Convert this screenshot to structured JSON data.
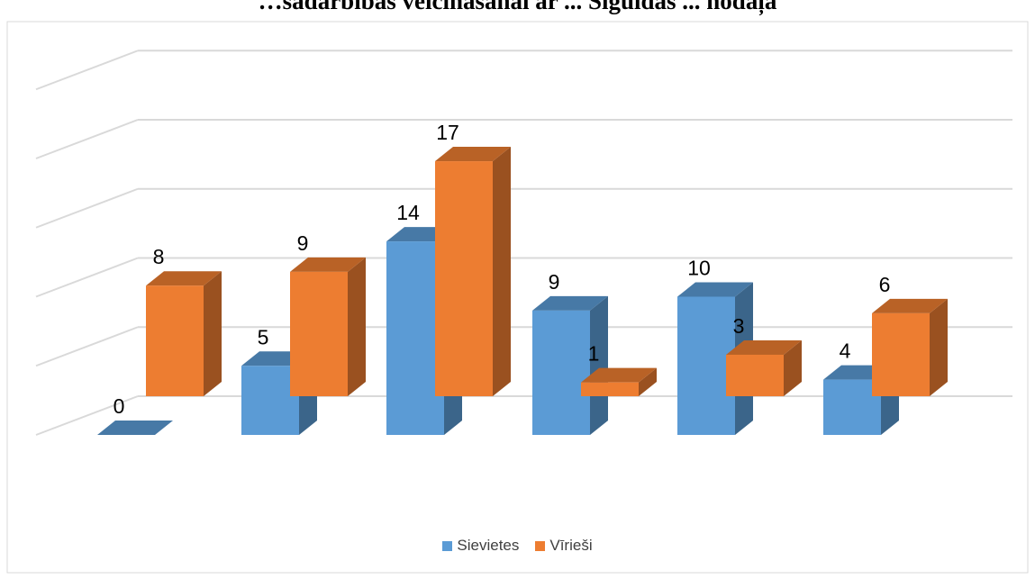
{
  "title": "…sadarbības veicināšanai ar ... Siguldas ... nodaļa",
  "colors": {
    "s1": "#5b9bd5",
    "s2": "#ed7d31"
  },
  "chart_data": {
    "type": "bar",
    "subtype": "3d-clustered-column",
    "title": "…sadarbības veicināšanai ar ... Siguldas ... nodaļa",
    "categories": [
      "",
      "",
      "",
      "",
      "",
      ""
    ],
    "series": [
      {
        "name": "Sievietes",
        "values": [
          0,
          5,
          14,
          9,
          10,
          4
        ]
      },
      {
        "name": "Vīrieši",
        "values": [
          8,
          9,
          17,
          1,
          3,
          6
        ]
      }
    ],
    "ylim": [
      0,
      25
    ],
    "grid": true,
    "legend": "bottom"
  }
}
